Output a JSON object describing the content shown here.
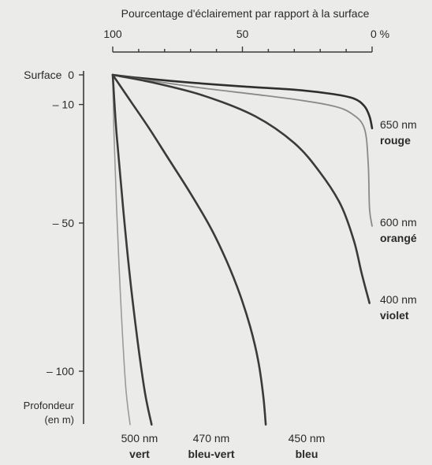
{
  "chart_data": {
    "type": "line",
    "title": "Pourcentage d'éclairement par rapport à la surface",
    "x_axis": {
      "ticks": [
        {
          "value": 100,
          "label": "100"
        },
        {
          "value": 50,
          "label": "50"
        },
        {
          "value": 0,
          "label": "0 %"
        }
      ],
      "range": [
        100,
        0
      ],
      "position": "top"
    },
    "y_axis": {
      "label_line1": "Profondeur",
      "label_line2": "(en m)",
      "ticks": [
        {
          "value": 0,
          "label": "Surface  0"
        },
        {
          "value": -10,
          "label": "– 10"
        },
        {
          "value": -50,
          "label": "– 50"
        },
        {
          "value": -100,
          "label": "– 100"
        }
      ],
      "range": [
        0,
        -120
      ]
    },
    "series": [
      {
        "wavelength": "650 nm",
        "name": "rouge",
        "color": "#2f2f2f",
        "width": 2.6,
        "points": [
          [
            100,
            0
          ],
          [
            90,
            -1
          ],
          [
            70,
            -2.6
          ],
          [
            50,
            -3.9
          ],
          [
            30,
            -5
          ],
          [
            15,
            -6.5
          ],
          [
            7,
            -8
          ],
          [
            3,
            -10.5
          ],
          [
            1,
            -14
          ],
          [
            0,
            -18
          ]
        ]
      },
      {
        "wavelength": "600 nm",
        "name": "orangé",
        "color": "#8a8a8a",
        "width": 1.8,
        "points": [
          [
            100,
            0
          ],
          [
            85,
            -2
          ],
          [
            65,
            -4.5
          ],
          [
            45,
            -6.6
          ],
          [
            28,
            -8.5
          ],
          [
            15,
            -10.5
          ],
          [
            8,
            -13
          ],
          [
            3,
            -18
          ],
          [
            1.5,
            -30
          ],
          [
            1,
            -45
          ],
          [
            0,
            -51
          ]
        ]
      },
      {
        "wavelength": "400 nm",
        "name": "violet",
        "color": "#3a3a3a",
        "width": 2.6,
        "points": [
          [
            100,
            0
          ],
          [
            85,
            -2.5
          ],
          [
            65,
            -7
          ],
          [
            45,
            -14
          ],
          [
            30,
            -23
          ],
          [
            20,
            -33
          ],
          [
            12,
            -44
          ],
          [
            7,
            -56
          ],
          [
            4,
            -67
          ],
          [
            1,
            -77
          ]
        ]
      },
      {
        "wavelength": "500 nm",
        "name": "vert",
        "color": "#9a9a9a",
        "width": 1.6,
        "points": [
          [
            100,
            0
          ],
          [
            99.5,
            -20
          ],
          [
            98.5,
            -45
          ],
          [
            97,
            -75
          ],
          [
            95,
            -105
          ],
          [
            93.3,
            -118
          ]
        ]
      },
      {
        "wavelength": "470 nm",
        "name": "bleu-vert",
        "color": "#3a3a3a",
        "width": 2.6,
        "points": [
          [
            100,
            0
          ],
          [
            98.5,
            -20
          ],
          [
            96,
            -45
          ],
          [
            92.5,
            -75
          ],
          [
            88,
            -105
          ],
          [
            85,
            -118
          ]
        ]
      },
      {
        "wavelength": "450 nm",
        "name": "bleu",
        "color": "#3a3a3a",
        "width": 2.6,
        "points": [
          [
            100,
            0
          ],
          [
            93,
            -9
          ],
          [
            86,
            -18
          ],
          [
            78,
            -29
          ],
          [
            70,
            -40
          ],
          [
            62,
            -52
          ],
          [
            56,
            -63
          ],
          [
            51,
            -74
          ],
          [
            47,
            -85
          ],
          [
            44,
            -96
          ],
          [
            42,
            -108
          ],
          [
            41,
            -118
          ]
        ]
      }
    ],
    "grid": false,
    "legend": "labels at curve ends"
  }
}
